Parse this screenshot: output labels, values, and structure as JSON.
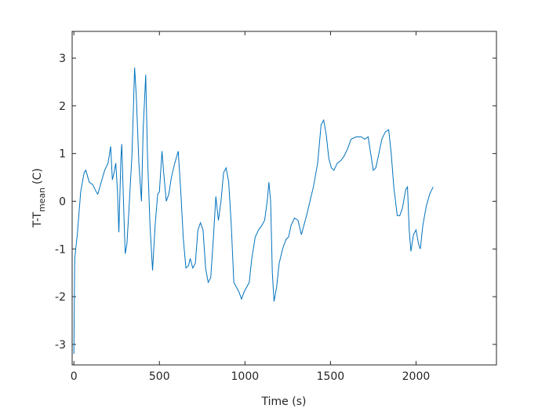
{
  "chart_data": {
    "type": "line",
    "xlabel": "Time (s)",
    "ylabel": "T-T",
    "ylabel_sub": "mean",
    "ylabel_suffix": "(C)",
    "color": "#0072bd",
    "xlim": [
      -10,
      2470
    ],
    "ylim": [
      -3.43,
      3.56
    ],
    "xticks": [
      0,
      500,
      1000,
      1500,
      2000
    ],
    "yticks": [
      -3,
      -2,
      -1,
      0,
      1,
      2,
      3
    ],
    "x": [
      0,
      5,
      20,
      40,
      60,
      70,
      90,
      110,
      130,
      140,
      160,
      180,
      200,
      215,
      225,
      235,
      245,
      255,
      263,
      275,
      280,
      290,
      300,
      310,
      320,
      340,
      355,
      365,
      380,
      395,
      405,
      420,
      430,
      445,
      460,
      475,
      490,
      500,
      515,
      525,
      540,
      555,
      570,
      590,
      610,
      625,
      640,
      655,
      670,
      680,
      695,
      710,
      725,
      740,
      755,
      770,
      785,
      800,
      815,
      830,
      845,
      860,
      875,
      890,
      905,
      920,
      935,
      950,
      965,
      980,
      995,
      1010,
      1025,
      1040,
      1060,
      1080,
      1100,
      1115,
      1130,
      1140,
      1150,
      1160,
      1170,
      1185,
      1200,
      1220,
      1240,
      1255,
      1270,
      1290,
      1310,
      1330,
      1345,
      1360,
      1380,
      1400,
      1425,
      1445,
      1460,
      1475,
      1490,
      1505,
      1520,
      1540,
      1560,
      1580,
      1600,
      1620,
      1650,
      1680,
      1700,
      1720,
      1735,
      1750,
      1765,
      1780,
      1800,
      1820,
      1840,
      1855,
      1870,
      1890,
      1905,
      1920,
      1940,
      1950,
      1960,
      1970,
      1985,
      2000,
      2015,
      2025,
      2040,
      2060,
      2080,
      2100
    ],
    "values": [
      -3.2,
      -1.2,
      -0.7,
      0.2,
      0.6,
      0.65,
      0.4,
      0.35,
      0.2,
      0.15,
      0.4,
      0.65,
      0.8,
      1.15,
      0.45,
      0.6,
      0.8,
      0.2,
      -0.65,
      0.9,
      1.2,
      0.0,
      -1.1,
      -0.9,
      -0.3,
      1.0,
      2.8,
      2.2,
      0.8,
      0.0,
      1.5,
      2.65,
      1.0,
      -0.5,
      -1.45,
      -0.5,
      0.15,
      0.2,
      1.05,
      0.6,
      0.0,
      0.15,
      0.5,
      0.8,
      1.05,
      0.2,
      -0.8,
      -1.4,
      -1.35,
      -1.2,
      -1.4,
      -1.3,
      -0.6,
      -0.45,
      -0.6,
      -1.4,
      -1.7,
      -1.6,
      -0.8,
      0.1,
      -0.4,
      0.0,
      0.6,
      0.7,
      0.4,
      -0.5,
      -1.7,
      -1.8,
      -1.9,
      -2.05,
      -1.9,
      -1.8,
      -1.7,
      -1.2,
      -0.75,
      -0.6,
      -0.5,
      -0.4,
      0.0,
      0.4,
      0.0,
      -1.5,
      -2.1,
      -1.8,
      -1.3,
      -1.0,
      -0.8,
      -0.75,
      -0.5,
      -0.35,
      -0.4,
      -0.7,
      -0.5,
      -0.3,
      0.0,
      0.3,
      0.8,
      1.6,
      1.7,
      1.4,
      0.9,
      0.7,
      0.65,
      0.8,
      0.85,
      0.95,
      1.1,
      1.3,
      1.35,
      1.35,
      1.3,
      1.35,
      1.0,
      0.65,
      0.7,
      0.95,
      1.3,
      1.45,
      1.5,
      1.0,
      0.3,
      -0.3,
      -0.3,
      -0.15,
      0.25,
      0.3,
      -0.6,
      -1.05,
      -0.7,
      -0.6,
      -0.9,
      -1.0,
      -0.5,
      -0.1,
      0.15,
      0.3
    ]
  }
}
